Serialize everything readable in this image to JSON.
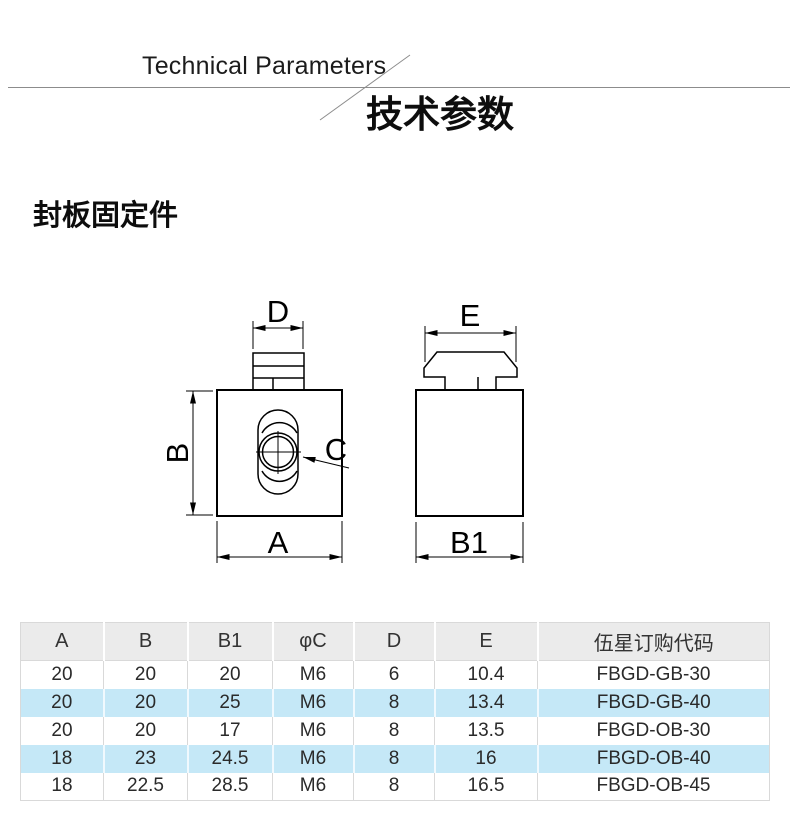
{
  "header": {
    "title_en": "Technical Parameters",
    "title_zh": "技术参数"
  },
  "section": {
    "title": "封板固定件"
  },
  "drawing": {
    "labels": {
      "d": "D",
      "b": "B",
      "a": "A",
      "c": "C",
      "e": "E",
      "b1": "B1"
    }
  },
  "table": {
    "columns": [
      "A",
      "B",
      "B1",
      "φC",
      "D",
      "E",
      "伍星订购代码"
    ],
    "rows": [
      [
        "20",
        "20",
        "20",
        "M6",
        "6",
        "10.4",
        "FBGD-GB-30"
      ],
      [
        "20",
        "20",
        "25",
        "M6",
        "8",
        "13.4",
        "FBGD-GB-40"
      ],
      [
        "20",
        "20",
        "17",
        "M6",
        "8",
        "13.5",
        "FBGD-OB-30"
      ],
      [
        "18",
        "23",
        "24.5",
        "M6",
        "8",
        "16",
        "FBGD-OB-40"
      ],
      [
        "18",
        "22.5",
        "28.5",
        "M6",
        "8",
        "16.5",
        "FBGD-OB-45"
      ]
    ],
    "highlighted_rows": [
      1,
      3
    ]
  },
  "colors": {
    "drawing_line": "#000000",
    "header_rule": "#8c8c8c",
    "table_header_bg": "#ebebeb",
    "row_highlight": "#c5e8f7",
    "table_border": "#d9d9d9"
  }
}
